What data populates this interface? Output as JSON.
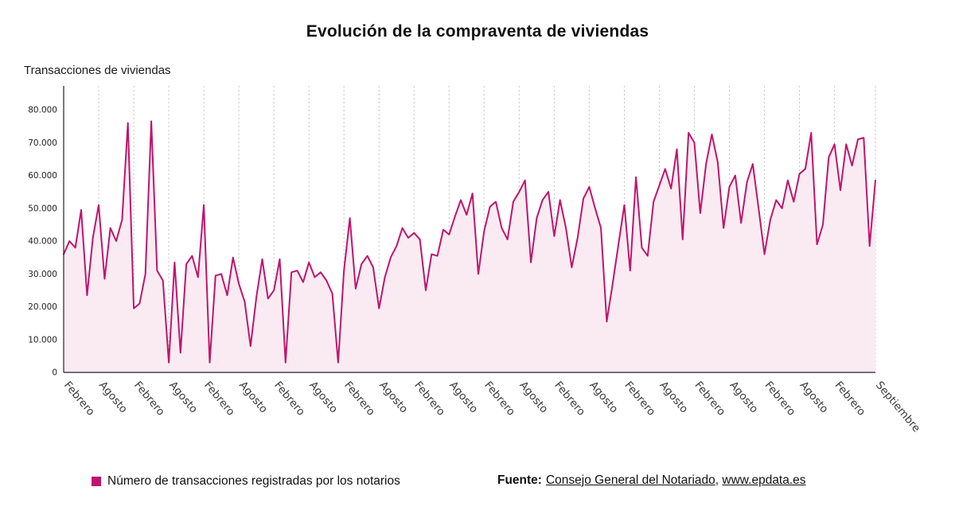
{
  "page": {
    "title": "Evolución de la compraventa de viviendas",
    "y_axis_title": "Transacciones de viviendas"
  },
  "legend": {
    "series_label": "Número de transacciones registradas por los notarios",
    "source_prefix": "Fuente:",
    "source_link_1": "Consejo General del Notariado",
    "source_separator": ", ",
    "source_link_2": "www.epdata.es"
  },
  "colors": {
    "line": "#c0146c",
    "area_fill": "#faebf2",
    "grid": "#c4c4c4",
    "axis": "#222222",
    "tick_text": "#3a3a3a",
    "ytick_text": "#222222"
  },
  "chart_data": {
    "type": "line",
    "title": "Evolución de la compraventa de viviendas",
    "xlabel": "",
    "ylabel": "Transacciones de viviendas",
    "legend_position": "bottom",
    "grid": "vertical-dashed",
    "ylim": [
      0,
      80000
    ],
    "y_ticks": [
      0,
      10000,
      20000,
      30000,
      40000,
      50000,
      60000,
      70000,
      80000
    ],
    "series_name": "Número de transacciones registradas por los notarios",
    "x_tick_indices": [
      0,
      6,
      12,
      18,
      24,
      30,
      36,
      42,
      48,
      54,
      60,
      66,
      72,
      78,
      84,
      90,
      96,
      102,
      108,
      114,
      120,
      126,
      132,
      139
    ],
    "x_tick_labels": [
      "Febrero",
      "Agosto",
      "Febrero",
      "Agosto",
      "Febrero",
      "Agosto",
      "Febrero",
      "Agosto",
      "Febrero",
      "Agosto",
      "Febrero",
      "Agosto",
      "Febrero",
      "Agosto",
      "Febrero",
      "Agosto",
      "Febrero",
      "Agosto",
      "Febrero",
      "Agosto",
      "Febrero",
      "Agosto",
      "Febrero",
      "Septiembre"
    ],
    "values": [
      36000,
      40000,
      38000,
      49500,
      23500,
      41000,
      51000,
      28500,
      44000,
      40000,
      46500,
      76000,
      19500,
      21000,
      30000,
      76500,
      31000,
      28000,
      3000,
      33500,
      6000,
      33000,
      35500,
      29000,
      51000,
      3000,
      29500,
      30000,
      23500,
      35000,
      27000,
      21500,
      8000,
      23000,
      34500,
      22500,
      25000,
      34500,
      3000,
      30500,
      31000,
      27500,
      33500,
      29000,
      30500,
      28000,
      24000,
      3000,
      31000,
      47000,
      25500,
      33000,
      35500,
      32000,
      19500,
      29000,
      35000,
      38500,
      44000,
      41000,
      42500,
      40500,
      25000,
      36000,
      35500,
      43500,
      42000,
      47500,
      52500,
      48000,
      54500,
      30000,
      43000,
      50500,
      52000,
      44000,
      40500,
      52000,
      55000,
      58500,
      33500,
      47000,
      52500,
      55000,
      41500,
      52500,
      44000,
      32000,
      41000,
      53000,
      56500,
      50000,
      44000,
      15500,
      27000,
      39000,
      51000,
      31000,
      59500,
      38000,
      35500,
      52000,
      57000,
      62000,
      56000,
      68000,
      40500,
      73000,
      70000,
      48500,
      63500,
      72500,
      64000,
      44000,
      56500,
      60000,
      45500,
      58000,
      63500,
      50000,
      36000,
      46500,
      52500,
      50000,
      58500,
      52000,
      60500,
      62000,
      73000,
      39000,
      45000,
      65500,
      69500,
      55500,
      69500,
      63000,
      71000,
      71500,
      38500,
      58500
    ]
  }
}
